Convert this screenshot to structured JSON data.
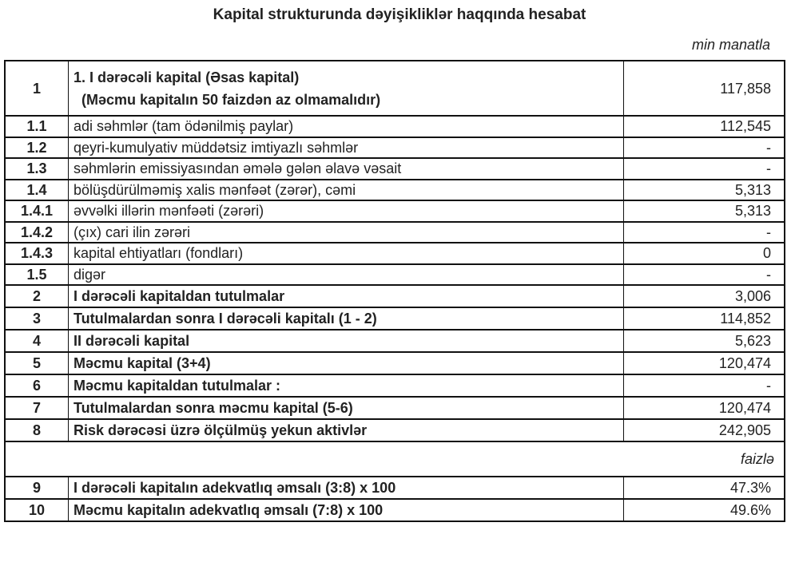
{
  "title": "Kapital strukturunda dəyişikliklər haqqında hesabat",
  "unit": "min manatla",
  "percent_unit": "faizlə",
  "rows": [
    {
      "num": "1",
      "label": "1. I dərəcəli kapital (Əsas kapital)",
      "label2": "(Məcmu kapitalın 50 faizdən az olmamalıdır)",
      "value": "117,858",
      "bold": true
    },
    {
      "num": "1.1",
      "label": "adi səhmlər (tam ödənilmiş paylar)",
      "value": "112,545"
    },
    {
      "num": "1.2",
      "label": "qeyri-kumulyativ müddətsiz imtiyazlı səhmlər",
      "value": "-"
    },
    {
      "num": "1.3",
      "label": "səhmlərin emissiyasından əmələ gələn əlavə vəsait",
      "value": "-"
    },
    {
      "num": "1.4",
      "label": "bölüşdürülməmiş xalis mənfəət (zərər), cəmi",
      "value": "5,313"
    },
    {
      "num": "1.4.1",
      "label": "əvvəlki illərin mənfəəti (zərəri)",
      "value": "5,313"
    },
    {
      "num": "1.4.2",
      "label": "(çıx) cari ilin zərəri",
      "value": "-"
    },
    {
      "num": "1.4.3",
      "label": "kapital ehtiyatları (fondları)",
      "value": "0"
    },
    {
      "num": "1.5",
      "label": "digər",
      "value": "-"
    },
    {
      "num": "2",
      "label": "I dərəcəli kapitaldan tutulmalar",
      "value": "3,006",
      "bold": true
    },
    {
      "num": "3",
      "label": "Tutulmalardan sonra I dərəcəli kapitalı (1 - 2)",
      "value": "114,852",
      "bold": true
    },
    {
      "num": "4",
      "label": "II dərəcəli kapital",
      "value": "5,623",
      "bold": true
    },
    {
      "num": "5",
      "label": "Məcmu kapital (3+4)",
      "value": "120,474",
      "bold": true
    },
    {
      "num": "6",
      "label": "Məcmu kapitaldan tutulmalar :",
      "value": "-",
      "bold": true
    },
    {
      "num": "7",
      "label": "Tutulmalardan sonra məcmu kapital (5-6)",
      "value": "120,474",
      "bold": true
    },
    {
      "num": "8",
      "label": "Risk dərəcəsi üzrə ölçülmüş yekun aktivlər",
      "value": "242,905",
      "bold": true
    },
    {
      "num": "9",
      "label": "I dərəcəli kapitalın adekvatlıq əmsalı (3:8) x 100",
      "value": "47.3%",
      "bold": true
    },
    {
      "num": "10",
      "label": "Məcmu kapitalın adekvatlıq əmsalı (7:8) x 100",
      "value": "49.6%",
      "bold": true
    }
  ]
}
